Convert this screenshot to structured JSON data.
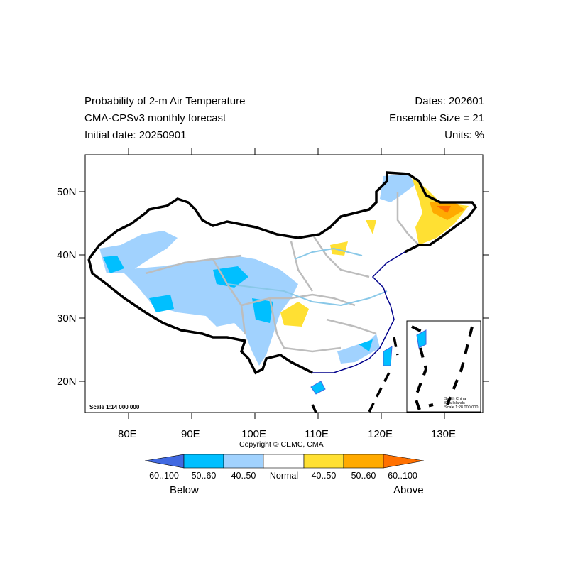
{
  "title": {
    "line1": "Probability of 2-m Air Temperature",
    "line2": "CMA-CPSv3 monthly forecast",
    "line3": "Initial date: 20250901"
  },
  "info": {
    "dates": "Dates: 202601",
    "ensemble": "Ensemble Size = 21",
    "units": "Units: %"
  },
  "axes": {
    "lat_labels": [
      "50N",
      "40N",
      "30N",
      "20N"
    ],
    "lon_labels": [
      "80E",
      "90E",
      "100E",
      "110E",
      "120E",
      "130E"
    ]
  },
  "map": {
    "scale": "Scale 1:14 000 000",
    "inset_title_1": "South China",
    "inset_title_2": "Sea Islands",
    "inset_scale": "Scale 1:28 000 000",
    "copyright": "Copyright © CEMC, CMA"
  },
  "colorbar": {
    "labels": [
      "60..100",
      "50..60",
      "40..50",
      "Normal",
      "40..50",
      "50..60",
      "60..100"
    ],
    "colors": [
      "#4169e1",
      "#00bfff",
      "#a1d2fe",
      "#ffffff",
      "#ffe033",
      "#ffaa00",
      "#ff7000"
    ],
    "below": "Below",
    "above": "Above"
  }
}
